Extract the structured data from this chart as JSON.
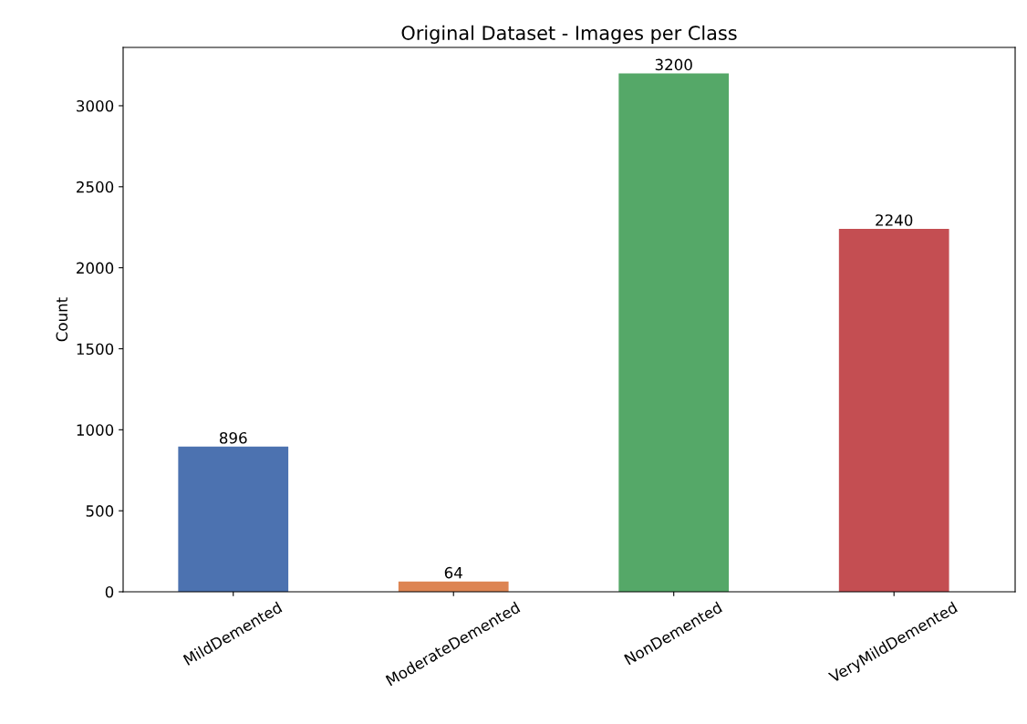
{
  "chart_data": {
    "type": "bar",
    "title": "Original Dataset - Images per Class",
    "ylabel": "Count",
    "categories": [
      "MildDemented",
      "ModerateDemented",
      "NonDemented",
      "VeryMildDemented"
    ],
    "values": [
      896,
      64,
      3200,
      2240
    ],
    "colors": [
      "#4c72b0",
      "#dd8452",
      "#55a868",
      "#c44e52"
    ],
    "ylim": [
      0,
      3360
    ],
    "yticks": [
      0,
      500,
      1000,
      1500,
      2000,
      2500,
      3000
    ],
    "data_labels": true,
    "grid": false,
    "legend": false
  }
}
